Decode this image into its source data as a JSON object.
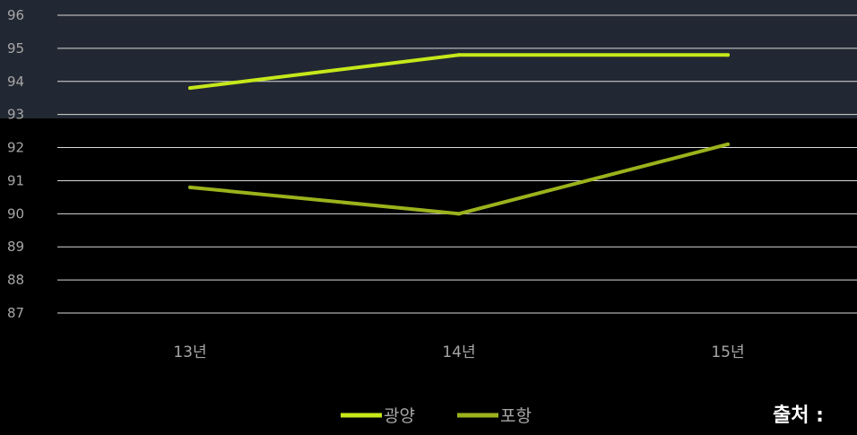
{
  "chart_data": {
    "type": "line",
    "categories": [
      "13년",
      "14년",
      "15년"
    ],
    "series": [
      {
        "name": "광양",
        "values": [
          93.8,
          94.8,
          94.8
        ],
        "color": "#c6e81a"
      },
      {
        "name": "포항",
        "values": [
          90.8,
          90.0,
          92.1
        ],
        "color": "#9cb21c"
      }
    ],
    "ylim": [
      87,
      96
    ],
    "yticks": [
      96,
      95,
      94,
      93,
      92,
      91,
      90,
      89,
      88,
      87
    ],
    "grid": true,
    "legend": "bottom-center"
  },
  "source_label": "출처 :",
  "colors": {
    "background": "#000000",
    "plot_band": "#222833",
    "gridline": "#d9d9d9",
    "tick_text": "#a6a6a6"
  }
}
